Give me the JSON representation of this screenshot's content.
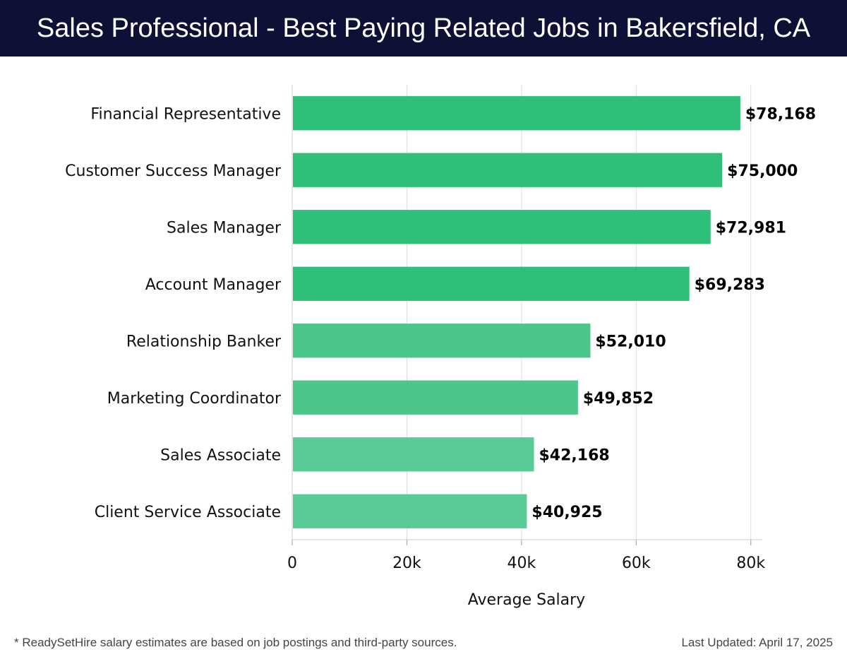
{
  "header": {
    "title": "Sales Professional - Best Paying Related Jobs in Bakersfield, CA"
  },
  "chart_data": {
    "type": "bar",
    "orientation": "horizontal",
    "categories": [
      "Financial Representative",
      "Customer Success Manager",
      "Sales Manager",
      "Account Manager",
      "Relationship Banker",
      "Marketing Coordinator",
      "Sales Associate",
      "Client Service Associate"
    ],
    "values": [
      78168,
      75000,
      72981,
      69283,
      52010,
      49852,
      42168,
      40925
    ],
    "value_labels": [
      "$78,168",
      "$75,000",
      "$72,981",
      "$69,283",
      "$52,010",
      "$49,852",
      "$42,168",
      "$40,925"
    ],
    "xlabel": "Average Salary",
    "ylabel": "",
    "xlim": [
      0,
      82000
    ],
    "xticks": [
      0,
      20000,
      40000,
      60000,
      80000
    ],
    "xtick_labels": [
      "0",
      "20k",
      "40k",
      "60k",
      "80k"
    ],
    "grid": "vertical",
    "colors": [
      "#2ebf78",
      "#2ebf78",
      "#2ebf78",
      "#2ebf78",
      "#4cc78b",
      "#4cc78b",
      "#59cc95",
      "#59cc95"
    ]
  },
  "footer": {
    "note": "* ReadySetHire salary estimates are based on job postings and third-party sources.",
    "updated": "Last Updated: April 17, 2025"
  }
}
